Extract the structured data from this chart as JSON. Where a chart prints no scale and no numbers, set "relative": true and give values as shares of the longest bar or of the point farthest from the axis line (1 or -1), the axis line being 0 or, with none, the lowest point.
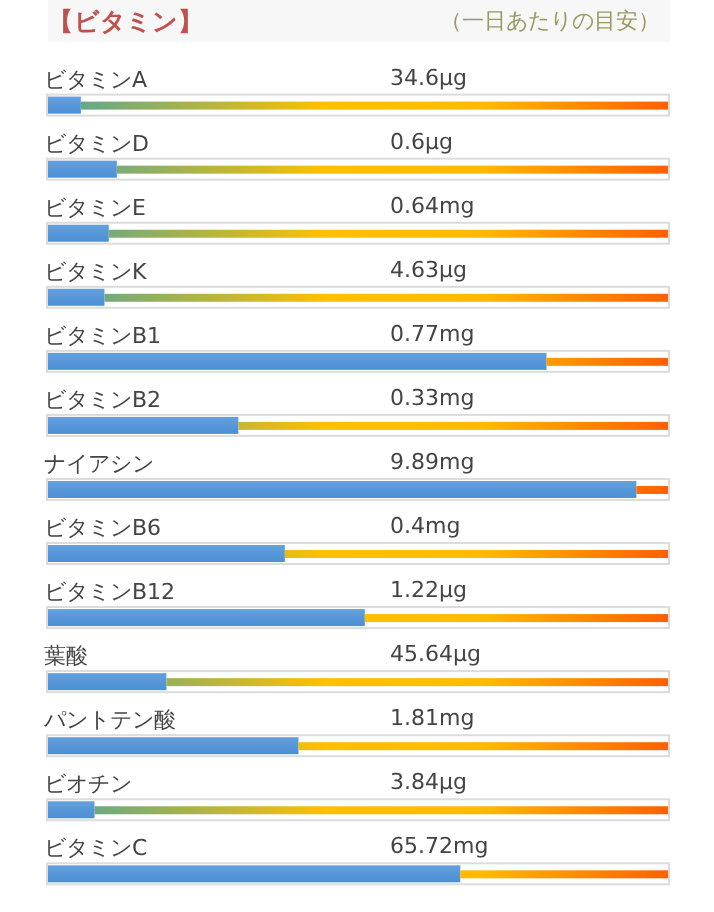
{
  "chart_data": {
    "type": "bar",
    "orientation": "horizontal",
    "relative": true,
    "title": "【ビタミン】",
    "subtitle": "（一日あたりの目安）",
    "categories": [
      "ビタミンA",
      "ビタミンD",
      "ビタミンE",
      "ビタミンK",
      "ビタミンB1",
      "ビタミンB2",
      "ナイアシン",
      "ビタミンB6",
      "ビタミンB12",
      "葉酸",
      "パントテン酸",
      "ビオチン",
      "ビタミンC"
    ],
    "stacked": true,
    "series": [
      {
        "color": "#4a8fd6",
        "values": [
          0.053,
          0.111,
          0.098,
          0.091,
          0.804,
          0.307,
          0.949,
          0.382,
          0.511,
          0.191,
          0.404,
          0.075,
          0.665
        ]
      },
      {
        "values": [
          0.947,
          0.889,
          0.902,
          0.909,
          0.196,
          0.693,
          0.051,
          0.618,
          0.489,
          0.809,
          0.596,
          0.925,
          0.335
        ]
      }
    ],
    "annotations": [
      {
        "text": "34.6μg",
        "y": "ビタミンA"
      },
      {
        "text": "0.6μg",
        "y": "ビタミンD"
      },
      {
        "text": "0.64mg",
        "y": "ビタミンE"
      },
      {
        "text": "4.63μg",
        "y": "ビタミンK"
      },
      {
        "text": "0.77mg",
        "y": "ビタミンB1"
      },
      {
        "text": "0.33mg",
        "y": "ビタミンB2"
      },
      {
        "text": "9.89mg",
        "y": "ナイアシン"
      },
      {
        "text": "0.4mg",
        "y": "ビタミンB6"
      },
      {
        "text": "1.22μg",
        "y": "ビタミンB12"
      },
      {
        "text": "45.64μg",
        "y": "葉酸"
      },
      {
        "text": "1.81mg",
        "y": "パントテン酸"
      },
      {
        "text": "3.84μg",
        "y": "ビオチン"
      },
      {
        "text": "65.72mg",
        "y": "ビタミンC"
      }
    ]
  }
}
